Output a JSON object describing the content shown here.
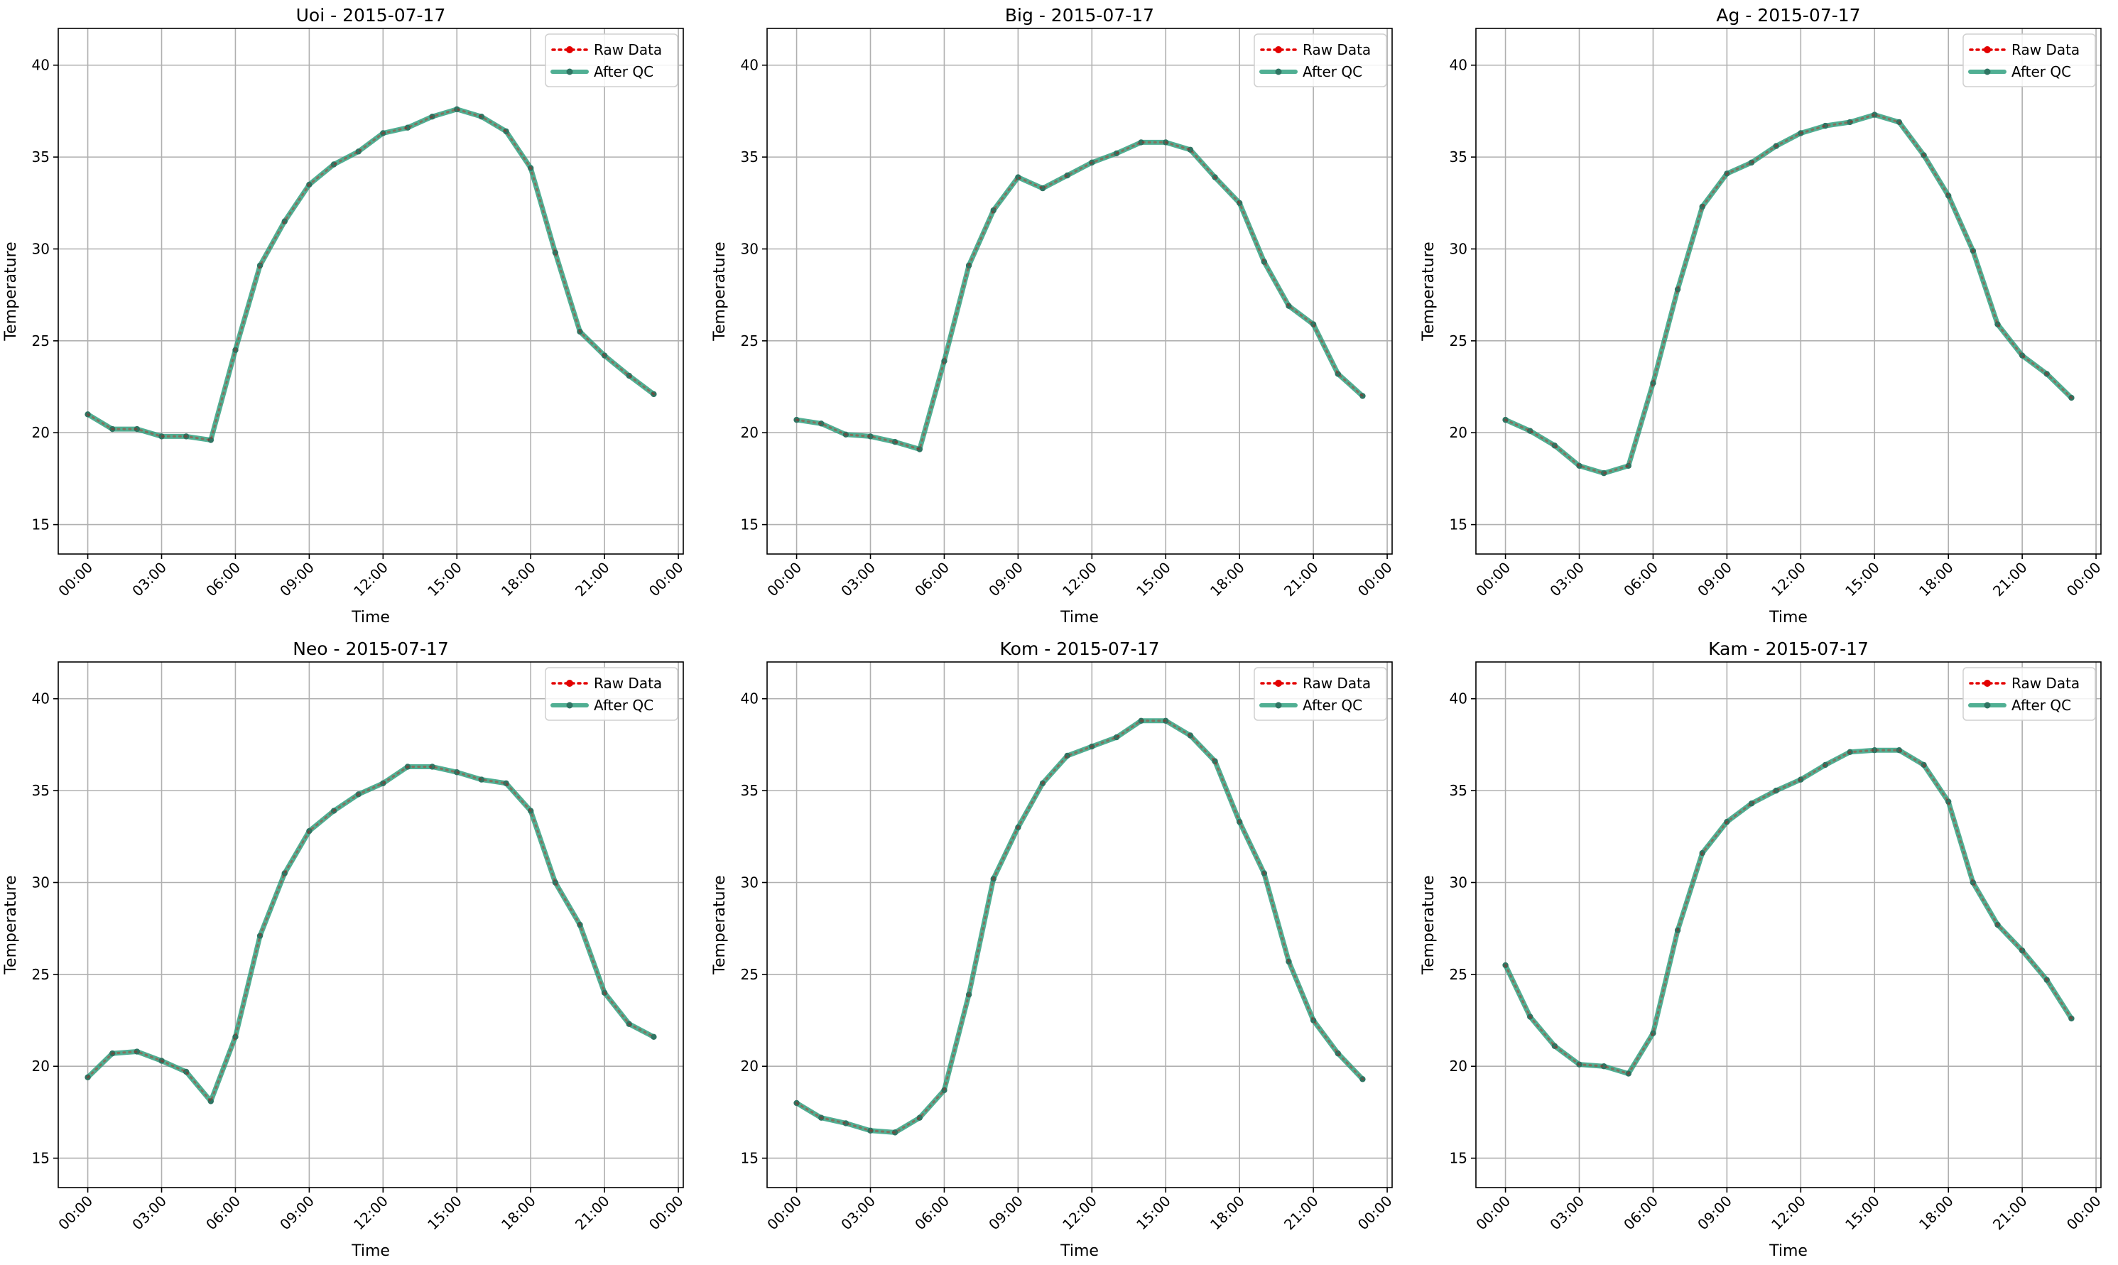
{
  "chart_data": [
    {
      "type": "line",
      "title": "Uoi - 2015-07-17",
      "xlabel": "Time",
      "ylabel": "Temperature",
      "x_ticks": [
        "00:00",
        "03:00",
        "06:00",
        "09:00",
        "12:00",
        "15:00",
        "18:00",
        "21:00",
        "00:00"
      ],
      "y_ticks": [
        15,
        20,
        25,
        30,
        35,
        40
      ],
      "xlim": [
        -1.2,
        24.2
      ],
      "ylim": [
        13.4,
        42
      ],
      "grid": true,
      "legend": "top-right",
      "x_hours": [
        0,
        1,
        2,
        3,
        4,
        5,
        6,
        7,
        8,
        9,
        10,
        11,
        12,
        13,
        14,
        15,
        16,
        17,
        18,
        19,
        20,
        21,
        22,
        23
      ],
      "series": [
        {
          "name": "Raw Data",
          "values": [
            21.0,
            20.2,
            20.2,
            19.8,
            19.8,
            19.6,
            24.5,
            29.1,
            31.5,
            33.5,
            34.6,
            35.3,
            36.3,
            36.6,
            37.2,
            37.6,
            37.2,
            36.4,
            34.4,
            29.8,
            25.5,
            24.2,
            23.1,
            22.1
          ]
        },
        {
          "name": "After QC",
          "values": [
            21.0,
            20.2,
            20.2,
            19.8,
            19.8,
            19.6,
            24.5,
            29.1,
            31.5,
            33.5,
            34.6,
            35.3,
            36.3,
            36.6,
            37.2,
            37.6,
            37.2,
            36.4,
            34.4,
            29.8,
            25.5,
            24.2,
            23.1,
            22.1
          ]
        }
      ]
    },
    {
      "type": "line",
      "title": "Big - 2015-07-17",
      "xlabel": "Time",
      "ylabel": "Temperature",
      "x_ticks": [
        "00:00",
        "03:00",
        "06:00",
        "09:00",
        "12:00",
        "15:00",
        "18:00",
        "21:00",
        "00:00"
      ],
      "y_ticks": [
        15,
        20,
        25,
        30,
        35,
        40
      ],
      "xlim": [
        -1.2,
        24.2
      ],
      "ylim": [
        13.4,
        42
      ],
      "grid": true,
      "legend": "top-right",
      "x_hours": [
        0,
        1,
        2,
        3,
        4,
        5,
        6,
        7,
        8,
        9,
        10,
        11,
        12,
        13,
        14,
        15,
        16,
        17,
        18,
        19,
        20,
        21,
        22,
        23
      ],
      "series": [
        {
          "name": "Raw Data",
          "values": [
            20.7,
            20.5,
            19.9,
            19.8,
            19.5,
            19.1,
            23.9,
            29.1,
            32.1,
            33.9,
            33.3,
            34.0,
            34.7,
            35.2,
            35.8,
            35.8,
            35.4,
            33.9,
            32.5,
            29.3,
            26.9,
            25.9,
            23.2,
            22.0
          ]
        },
        {
          "name": "After QC",
          "values": [
            20.7,
            20.5,
            19.9,
            19.8,
            19.5,
            19.1,
            23.9,
            29.1,
            32.1,
            33.9,
            33.3,
            34.0,
            34.7,
            35.2,
            35.8,
            35.8,
            35.4,
            33.9,
            32.5,
            29.3,
            26.9,
            25.9,
            23.2,
            22.0
          ]
        }
      ]
    },
    {
      "type": "line",
      "title": "Ag - 2015-07-17",
      "xlabel": "Time",
      "ylabel": "Temperature",
      "x_ticks": [
        "00:00",
        "03:00",
        "06:00",
        "09:00",
        "12:00",
        "15:00",
        "18:00",
        "21:00",
        "00:00"
      ],
      "y_ticks": [
        15,
        20,
        25,
        30,
        35,
        40
      ],
      "xlim": [
        -1.2,
        24.2
      ],
      "ylim": [
        13.4,
        42
      ],
      "grid": true,
      "legend": "top-right",
      "x_hours": [
        0,
        1,
        2,
        3,
        4,
        5,
        6,
        7,
        8,
        9,
        10,
        11,
        12,
        13,
        14,
        15,
        16,
        17,
        18,
        19,
        20,
        21,
        22,
        23
      ],
      "series": [
        {
          "name": "Raw Data",
          "values": [
            20.7,
            20.1,
            19.3,
            18.2,
            17.8,
            18.2,
            22.7,
            27.8,
            32.3,
            34.1,
            34.7,
            35.6,
            36.3,
            36.7,
            36.9,
            37.3,
            36.9,
            35.1,
            32.9,
            29.9,
            25.9,
            24.2,
            23.2,
            21.9
          ]
        },
        {
          "name": "After QC",
          "values": [
            20.7,
            20.1,
            19.3,
            18.2,
            17.8,
            18.2,
            22.7,
            27.8,
            32.3,
            34.1,
            34.7,
            35.6,
            36.3,
            36.7,
            36.9,
            37.3,
            36.9,
            35.1,
            32.9,
            29.9,
            25.9,
            24.2,
            23.2,
            21.9
          ]
        }
      ]
    },
    {
      "type": "line",
      "title": "Neo - 2015-07-17",
      "xlabel": "Time",
      "ylabel": "Temperature",
      "x_ticks": [
        "00:00",
        "03:00",
        "06:00",
        "09:00",
        "12:00",
        "15:00",
        "18:00",
        "21:00",
        "00:00"
      ],
      "y_ticks": [
        15,
        20,
        25,
        30,
        35,
        40
      ],
      "xlim": [
        -1.2,
        24.2
      ],
      "ylim": [
        13.4,
        42
      ],
      "grid": true,
      "legend": "top-right",
      "x_hours": [
        0,
        1,
        2,
        3,
        4,
        5,
        6,
        7,
        8,
        9,
        10,
        11,
        12,
        13,
        14,
        15,
        16,
        17,
        18,
        19,
        20,
        21,
        22,
        23
      ],
      "series": [
        {
          "name": "Raw Data",
          "values": [
            19.4,
            20.7,
            20.8,
            20.3,
            19.7,
            18.1,
            21.6,
            27.1,
            30.5,
            32.8,
            33.9,
            34.8,
            35.4,
            36.3,
            36.3,
            36.0,
            35.6,
            35.4,
            33.9,
            30.0,
            27.7,
            24.0,
            22.3,
            21.6
          ]
        },
        {
          "name": "After QC",
          "values": [
            19.4,
            20.7,
            20.8,
            20.3,
            19.7,
            18.1,
            21.6,
            27.1,
            30.5,
            32.8,
            33.9,
            34.8,
            35.4,
            36.3,
            36.3,
            36.0,
            35.6,
            35.4,
            33.9,
            30.0,
            27.7,
            24.0,
            22.3,
            21.6
          ]
        }
      ]
    },
    {
      "type": "line",
      "title": "Kom - 2015-07-17",
      "xlabel": "Time",
      "ylabel": "Temperature",
      "x_ticks": [
        "00:00",
        "03:00",
        "06:00",
        "09:00",
        "12:00",
        "15:00",
        "18:00",
        "21:00",
        "00:00"
      ],
      "y_ticks": [
        15,
        20,
        25,
        30,
        35,
        40
      ],
      "xlim": [
        -1.2,
        24.2
      ],
      "ylim": [
        13.4,
        42
      ],
      "grid": true,
      "legend": "top-right",
      "x_hours": [
        0,
        1,
        2,
        3,
        4,
        5,
        6,
        7,
        8,
        9,
        10,
        11,
        12,
        13,
        14,
        15,
        16,
        17,
        18,
        19,
        20,
        21,
        22,
        23
      ],
      "series": [
        {
          "name": "Raw Data",
          "values": [
            18.0,
            17.2,
            16.9,
            16.5,
            16.4,
            17.2,
            18.7,
            23.9,
            30.2,
            33.0,
            35.4,
            36.9,
            37.4,
            37.9,
            38.8,
            38.8,
            38.0,
            36.6,
            33.3,
            30.5,
            25.7,
            22.5,
            20.7,
            19.3
          ]
        },
        {
          "name": "After QC",
          "values": [
            18.0,
            17.2,
            16.9,
            16.5,
            16.4,
            17.2,
            18.7,
            23.9,
            30.2,
            33.0,
            35.4,
            36.9,
            37.4,
            37.9,
            38.8,
            38.8,
            38.0,
            36.6,
            33.3,
            30.5,
            25.7,
            22.5,
            20.7,
            19.3
          ]
        }
      ]
    },
    {
      "type": "line",
      "title": "Kam - 2015-07-17",
      "xlabel": "Time",
      "ylabel": "Temperature",
      "x_ticks": [
        "00:00",
        "03:00",
        "06:00",
        "09:00",
        "12:00",
        "15:00",
        "18:00",
        "21:00",
        "00:00"
      ],
      "y_ticks": [
        15,
        20,
        25,
        30,
        35,
        40
      ],
      "xlim": [
        -1.2,
        24.2
      ],
      "ylim": [
        13.4,
        42
      ],
      "grid": true,
      "legend": "top-right",
      "x_hours": [
        0,
        1,
        2,
        3,
        4,
        5,
        6,
        7,
        8,
        9,
        10,
        11,
        12,
        13,
        14,
        15,
        16,
        17,
        18,
        19,
        20,
        21,
        22,
        23
      ],
      "series": [
        {
          "name": "Raw Data",
          "values": [
            25.5,
            22.7,
            21.1,
            20.1,
            20.0,
            19.6,
            21.8,
            27.4,
            31.6,
            33.3,
            34.3,
            35.0,
            35.6,
            36.4,
            37.1,
            37.2,
            37.2,
            36.4,
            34.4,
            30.0,
            27.7,
            26.3,
            24.7,
            22.6
          ]
        },
        {
          "name": "After QC",
          "values": [
            25.5,
            22.7,
            21.1,
            20.1,
            20.0,
            19.6,
            21.8,
            27.4,
            31.6,
            33.3,
            34.3,
            35.0,
            35.6,
            36.4,
            37.1,
            37.2,
            37.2,
            36.4,
            34.4,
            30.0,
            27.7,
            26.3,
            24.7,
            22.6
          ]
        }
      ]
    }
  ],
  "colors": {
    "raw": "#e30000",
    "qc_line": "#2a9d7b",
    "qc_point": "#2f7563",
    "grid": "#b0b0b0"
  }
}
